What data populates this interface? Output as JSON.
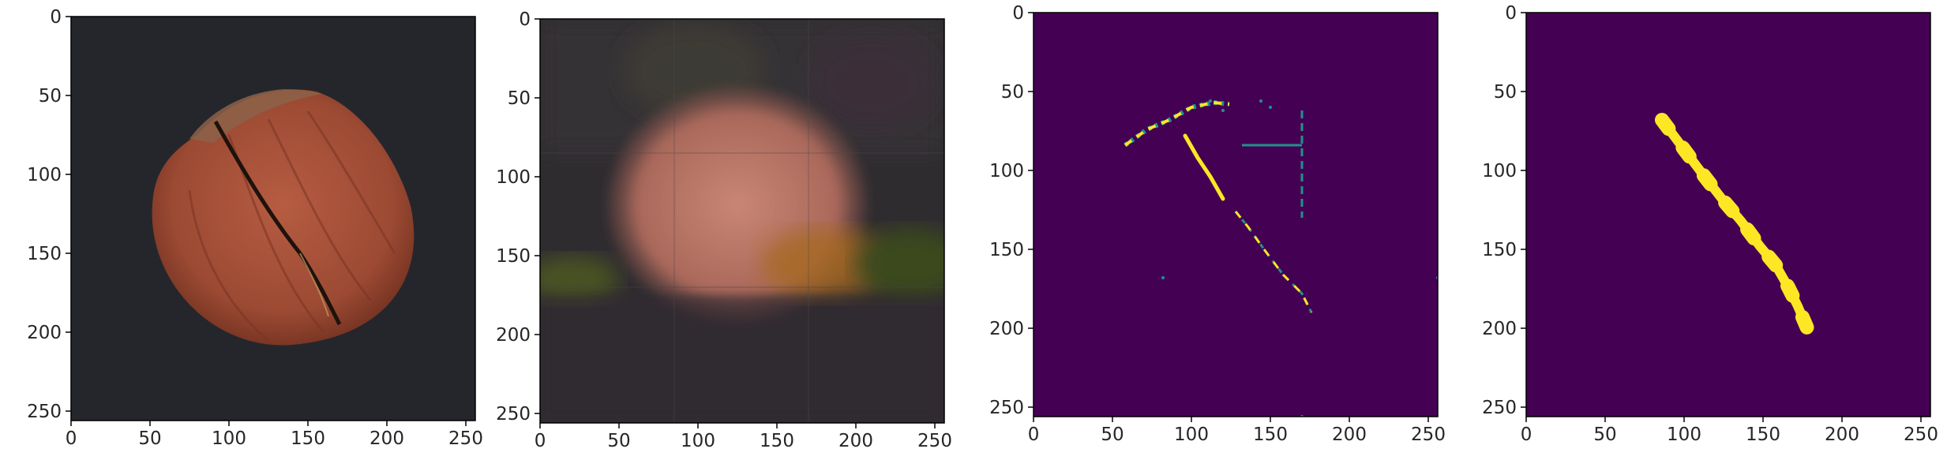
{
  "chart_data": [
    {
      "type": "image",
      "content": "hazelnut-photo",
      "xlim": [
        0,
        256
      ],
      "ylim": [
        256,
        0
      ],
      "x_ticks": [
        0,
        50,
        100,
        150,
        200,
        250
      ],
      "y_ticks": [
        0,
        50,
        100,
        150,
        200,
        250
      ],
      "colors": {
        "background": "#25262c",
        "shell": "#a9513a",
        "shell_dark": "#7a3320",
        "cap": "#8e6248",
        "crack": "#20140f"
      }
    },
    {
      "type": "image",
      "content": "blurry-reconstruction",
      "xlim": [
        0,
        256
      ],
      "ylim": [
        256,
        0
      ],
      "x_ticks": [
        0,
        50,
        100,
        150,
        200,
        250
      ],
      "y_ticks": [
        0,
        50,
        100,
        150,
        200,
        250
      ],
      "colors": {
        "background": "#2f2c30",
        "blob": "#c07a67",
        "green_patch": "#4a5220",
        "orange_patch": "#a86a22"
      }
    },
    {
      "type": "heatmap",
      "content": "thresholded-anomaly-map",
      "colormap": "viridis",
      "xlim": [
        0,
        256
      ],
      "ylim": [
        256,
        0
      ],
      "x_ticks": [
        0,
        50,
        100,
        150,
        200,
        250
      ],
      "y_ticks": [
        0,
        50,
        100,
        150,
        200,
        250
      ],
      "colors": {
        "background": "#440154",
        "high": "#fde725",
        "mid": "#21918c"
      },
      "features": {
        "main_streak": [
          [
            96,
            78
          ],
          [
            104,
            92
          ],
          [
            112,
            104
          ],
          [
            120,
            118
          ]
        ],
        "lower_streak": [
          [
            128,
            126
          ],
          [
            136,
            136
          ],
          [
            146,
            150
          ],
          [
            158,
            166
          ],
          [
            170,
            178
          ],
          [
            176,
            190
          ]
        ],
        "upper_cluster": [
          [
            58,
            84
          ],
          [
            72,
            74
          ],
          [
            86,
            68
          ],
          [
            100,
            60
          ],
          [
            114,
            57
          ],
          [
            124,
            58
          ]
        ],
        "vertical_line_x": 170,
        "vertical_line_y": [
          62,
          130
        ],
        "horizontal_line_y": 84,
        "horizontal_line_x": [
          132,
          170
        ]
      }
    },
    {
      "type": "heatmap",
      "content": "ground-truth-mask",
      "colormap": "viridis",
      "xlim": [
        0,
        256
      ],
      "ylim": [
        256,
        0
      ],
      "x_ticks": [
        0,
        50,
        100,
        150,
        200,
        250
      ],
      "y_ticks": [
        0,
        50,
        100,
        150,
        200,
        250
      ],
      "colors": {
        "background": "#440154",
        "mask": "#fde725"
      },
      "features": {
        "mask_band": [
          [
            86,
            68
          ],
          [
            98,
            84
          ],
          [
            110,
            100
          ],
          [
            124,
            118
          ],
          [
            136,
            132
          ],
          [
            148,
            148
          ],
          [
            158,
            160
          ],
          [
            166,
            174
          ],
          [
            172,
            186
          ],
          [
            178,
            200
          ]
        ]
      }
    }
  ]
}
